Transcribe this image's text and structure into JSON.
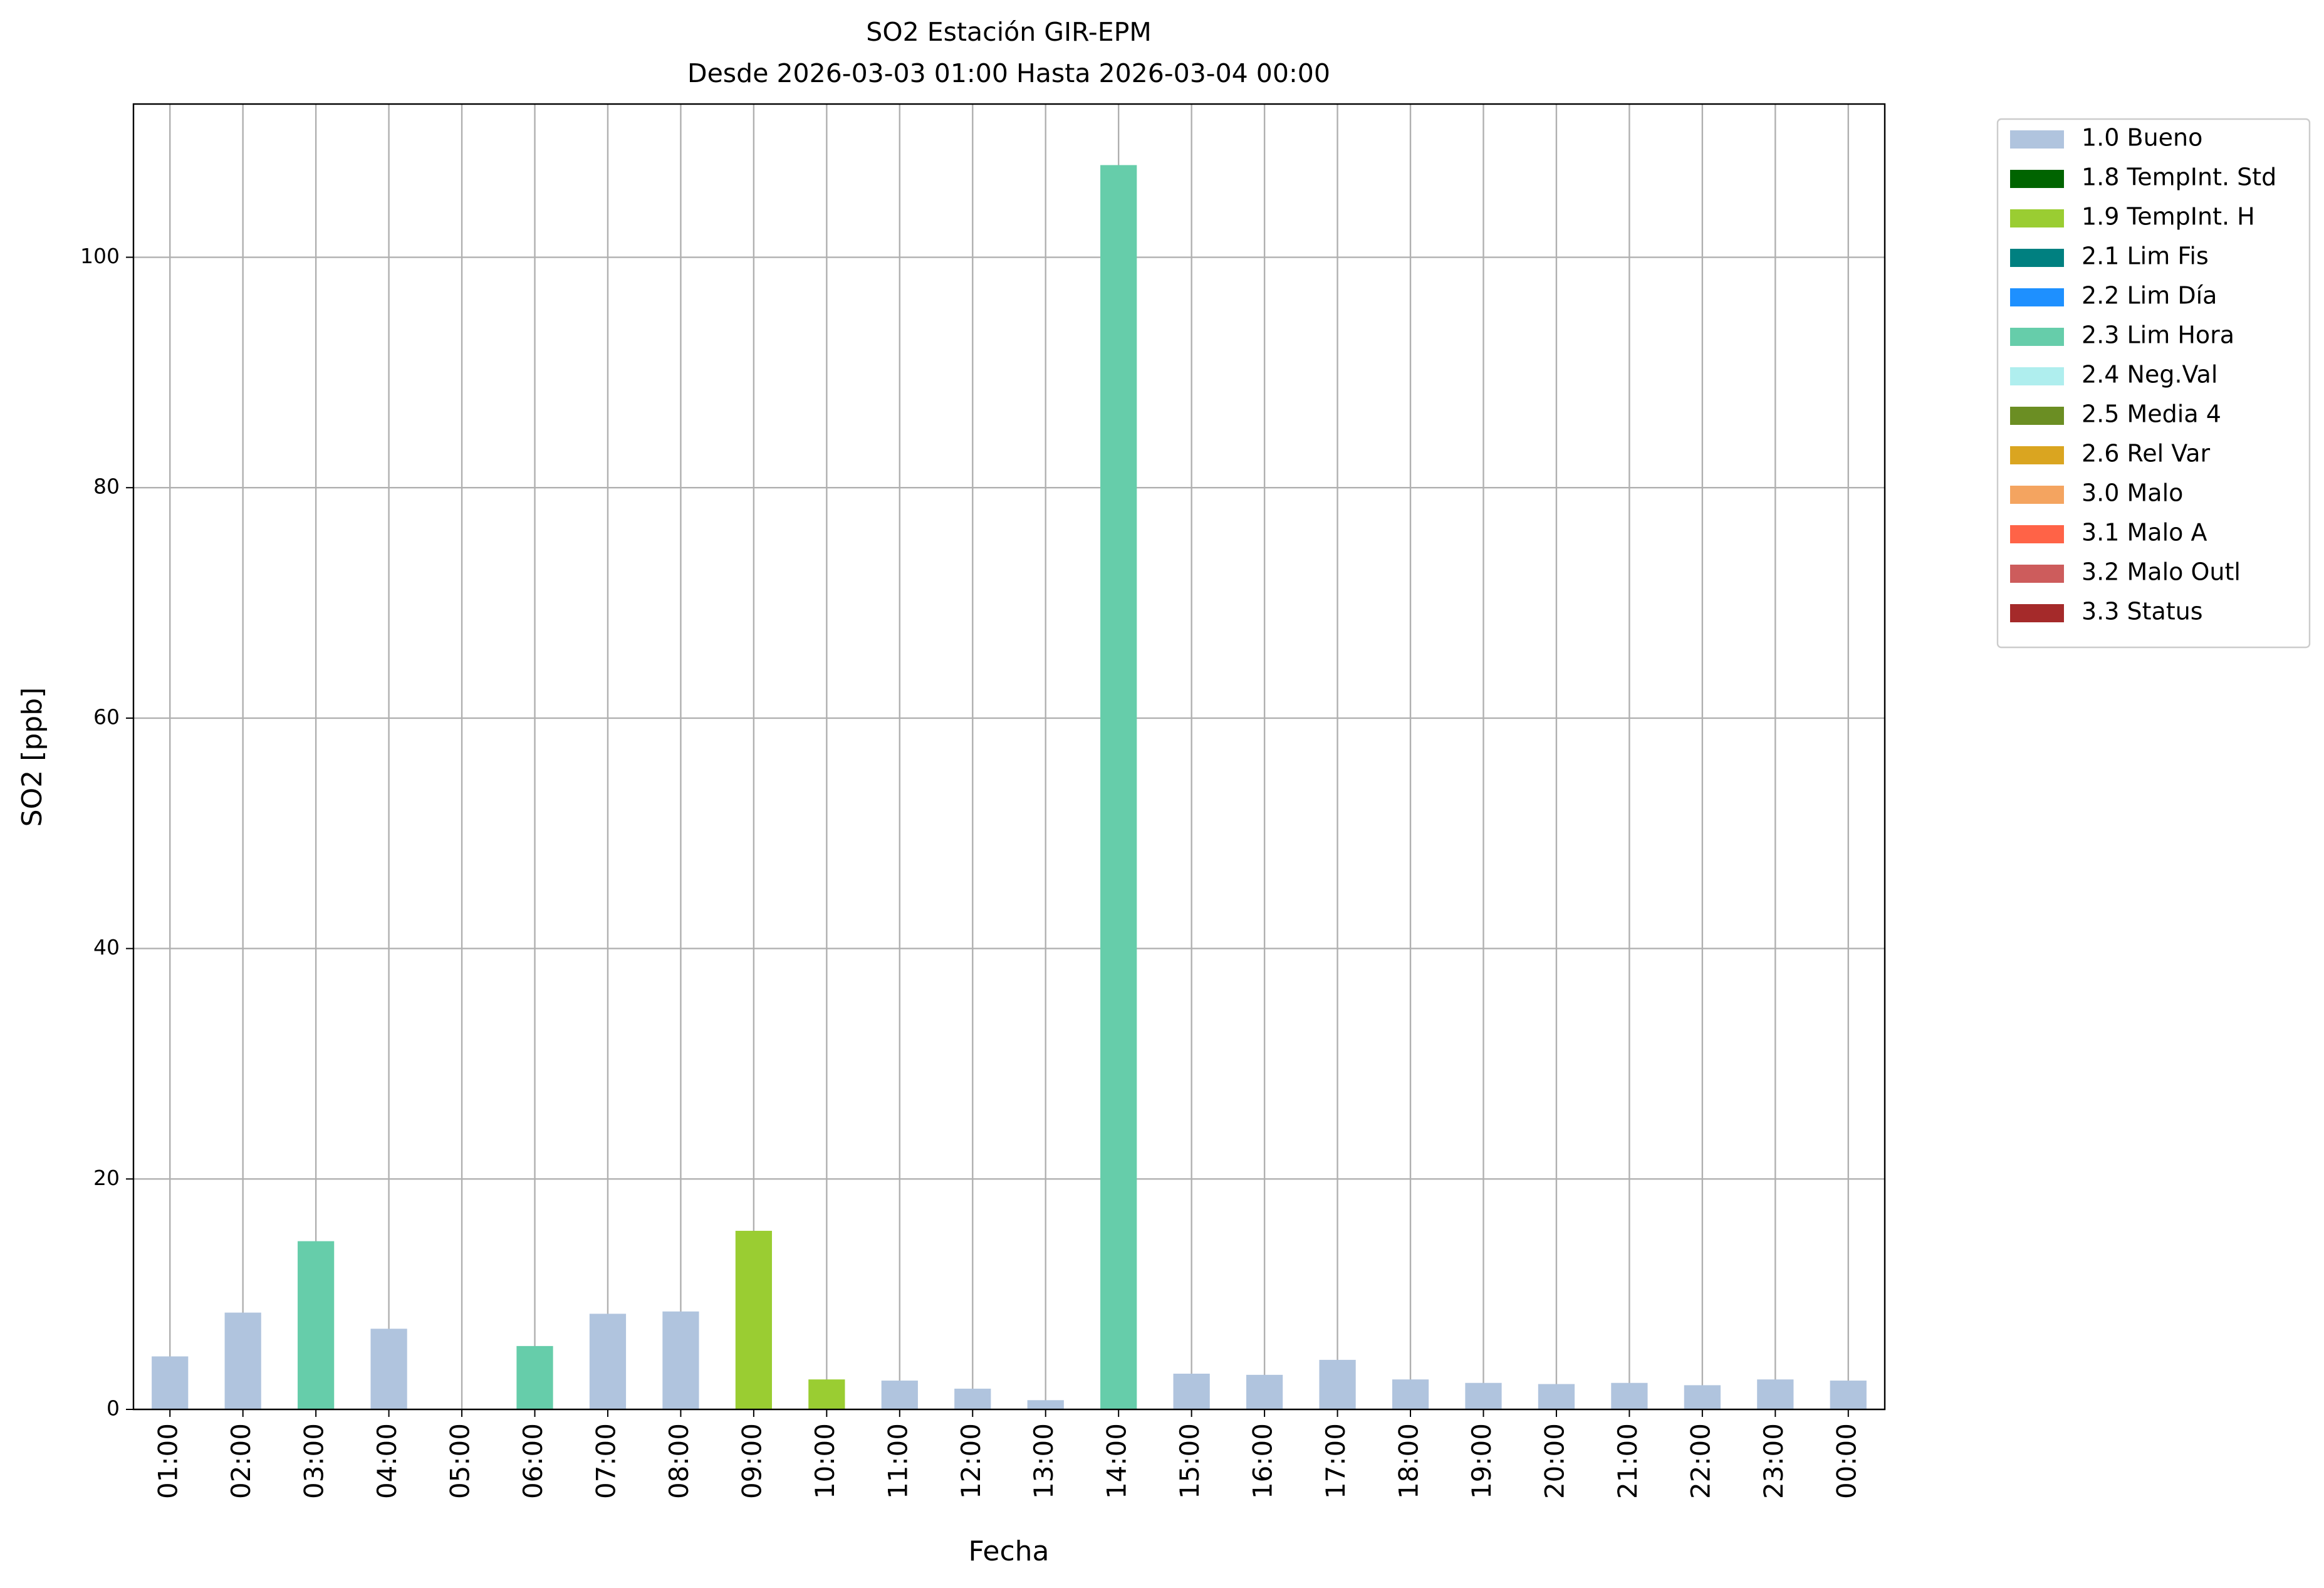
{
  "chart_data": {
    "type": "bar",
    "title": "SO2 Estación GIR-EPM",
    "subtitle": "Desde 2026-03-03 01:00 Hasta 2026-03-04 00:00",
    "xlabel": "Fecha",
    "ylabel": "SO2 [ppb]",
    "categories": [
      "01:00",
      "02:00",
      "03:00",
      "04:00",
      "05:00",
      "06:00",
      "07:00",
      "08:00",
      "09:00",
      "10:00",
      "11:00",
      "12:00",
      "13:00",
      "14:00",
      "15:00",
      "16:00",
      "17:00",
      "18:00",
      "19:00",
      "20:00",
      "21:00",
      "22:00",
      "23:00",
      "00:00"
    ],
    "series": [
      {
        "name": "1.0 Bueno",
        "color": "#b0c4de",
        "values": [
          4.6,
          8.4,
          null,
          7.0,
          null,
          null,
          8.3,
          8.5,
          null,
          null,
          2.5,
          1.8,
          0.8,
          null,
          3.1,
          3.0,
          4.3,
          2.6,
          2.3,
          2.2,
          2.3,
          2.1,
          2.6,
          2.5
        ]
      },
      {
        "name": "1.8 TempInt. Std",
        "color": "#006400",
        "values": [
          null,
          null,
          null,
          null,
          null,
          null,
          null,
          null,
          null,
          null,
          null,
          null,
          null,
          null,
          null,
          null,
          null,
          null,
          null,
          null,
          null,
          null,
          null,
          null
        ]
      },
      {
        "name": "1.9 TempInt. H",
        "color": "#9acd32",
        "values": [
          null,
          null,
          null,
          null,
          null,
          null,
          null,
          null,
          15.5,
          2.6,
          null,
          null,
          null,
          null,
          null,
          null,
          null,
          null,
          null,
          null,
          null,
          null,
          null,
          null
        ]
      },
      {
        "name": "2.1 Lim Fis",
        "color": "#008080",
        "values": [
          null,
          null,
          null,
          null,
          null,
          null,
          null,
          null,
          null,
          null,
          null,
          null,
          null,
          null,
          null,
          null,
          null,
          null,
          null,
          null,
          null,
          null,
          null,
          null
        ]
      },
      {
        "name": "2.2 Lim Día",
        "color": "#1e90ff",
        "values": [
          null,
          null,
          null,
          null,
          null,
          null,
          null,
          null,
          null,
          null,
          null,
          null,
          null,
          null,
          null,
          null,
          null,
          null,
          null,
          null,
          null,
          null,
          null,
          null
        ]
      },
      {
        "name": "2.3 Lim Hora",
        "color": "#66cdaa",
        "values": [
          null,
          null,
          14.6,
          null,
          null,
          5.5,
          null,
          null,
          null,
          null,
          null,
          null,
          null,
          108,
          null,
          null,
          null,
          null,
          null,
          null,
          null,
          null,
          null,
          null
        ]
      },
      {
        "name": "2.4 Neg.Val",
        "color": "#afeeee",
        "values": [
          null,
          null,
          null,
          null,
          null,
          null,
          null,
          null,
          null,
          null,
          null,
          null,
          null,
          null,
          null,
          null,
          null,
          null,
          null,
          null,
          null,
          null,
          null,
          null
        ]
      },
      {
        "name": "2.5 Media 4",
        "color": "#6b8e23",
        "values": [
          null,
          null,
          null,
          null,
          null,
          null,
          null,
          null,
          null,
          null,
          null,
          null,
          null,
          null,
          null,
          null,
          null,
          null,
          null,
          null,
          null,
          null,
          null,
          null
        ]
      },
      {
        "name": "2.6 Rel Var",
        "color": "#daa520",
        "values": [
          null,
          null,
          null,
          null,
          null,
          null,
          null,
          null,
          null,
          null,
          null,
          null,
          null,
          null,
          null,
          null,
          null,
          null,
          null,
          null,
          null,
          null,
          null,
          null
        ]
      },
      {
        "name": "3.0 Malo",
        "color": "#f4a460",
        "values": [
          null,
          null,
          null,
          null,
          null,
          null,
          null,
          null,
          null,
          null,
          null,
          null,
          null,
          null,
          null,
          null,
          null,
          null,
          null,
          null,
          null,
          null,
          null,
          null
        ]
      },
      {
        "name": "3.1 Malo A",
        "color": "#ff6347",
        "values": [
          null,
          null,
          null,
          null,
          null,
          null,
          null,
          null,
          null,
          null,
          null,
          null,
          null,
          null,
          null,
          null,
          null,
          null,
          null,
          null,
          null,
          null,
          null,
          null
        ]
      },
      {
        "name": "3.2 Malo Outl",
        "color": "#cd5c5c",
        "values": [
          null,
          null,
          null,
          null,
          null,
          null,
          null,
          null,
          null,
          null,
          null,
          null,
          null,
          null,
          null,
          null,
          null,
          null,
          null,
          null,
          null,
          null,
          null,
          null
        ]
      },
      {
        "name": "3.3 Status",
        "color": "#a52a2a",
        "values": [
          null,
          null,
          null,
          null,
          null,
          null,
          null,
          null,
          null,
          null,
          null,
          null,
          null,
          null,
          null,
          null,
          null,
          null,
          null,
          null,
          null,
          null,
          null,
          null
        ]
      }
    ],
    "ylim": [
      0,
      113.3
    ],
    "yticks": [
      0,
      20,
      40,
      60,
      80,
      100
    ],
    "grid": true,
    "legend": "outside upper right"
  }
}
